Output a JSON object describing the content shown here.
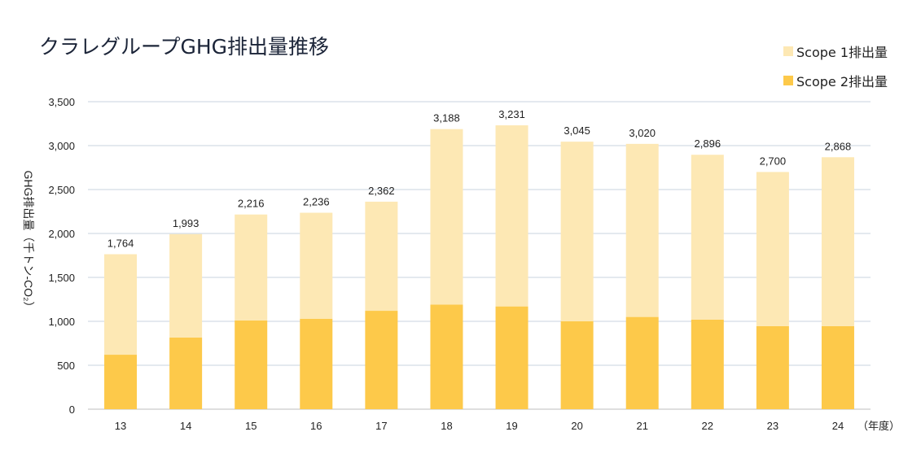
{
  "title": "クラレグループGHG排出量推移",
  "legend": [
    {
      "label": "Scope 1排出量",
      "color": "#fde8b4"
    },
    {
      "label": "Scope 2排出量",
      "color": "#fdc94a"
    }
  ],
  "chart_data": {
    "type": "bar",
    "stacked": true,
    "title": "クラレグループGHG排出量推移",
    "categories": [
      "13",
      "14",
      "15",
      "16",
      "17",
      "18",
      "19",
      "20",
      "21",
      "22",
      "23",
      "24"
    ],
    "xlabel": "（年度）",
    "ylabel": "GHG排出量（千トン-CO₂）",
    "ylim": [
      0,
      3500
    ],
    "yticks": [
      0,
      500,
      1000,
      1500,
      2000,
      2500,
      3000,
      3500
    ],
    "ytick_labels": [
      "0",
      "500",
      "1,000",
      "1,500",
      "2,000",
      "2,500",
      "3,000",
      "3,500"
    ],
    "grid": true,
    "legend_position": "top-right",
    "series": [
      {
        "name": "Scope 2排出量",
        "color": "#fdc94a",
        "values": [
          620,
          815,
          1010,
          1030,
          1120,
          1190,
          1170,
          1000,
          1050,
          1020,
          945,
          945
        ]
      },
      {
        "name": "Scope 1排出量",
        "color": "#fde8b4",
        "values": [
          1144,
          1178,
          1206,
          1206,
          1242,
          1998,
          2061,
          2045,
          1970,
          1876,
          1755,
          1923
        ]
      }
    ],
    "totals": [
      1764,
      1993,
      2216,
      2236,
      2362,
      3188,
      3231,
      3045,
      3020,
      2896,
      2700,
      2868
    ],
    "total_labels": [
      "1,764",
      "1,993",
      "2,216",
      "2,236",
      "2,362",
      "3,188",
      "3,231",
      "3,045",
      "3,020",
      "2,896",
      "2,700",
      "2,868"
    ]
  }
}
